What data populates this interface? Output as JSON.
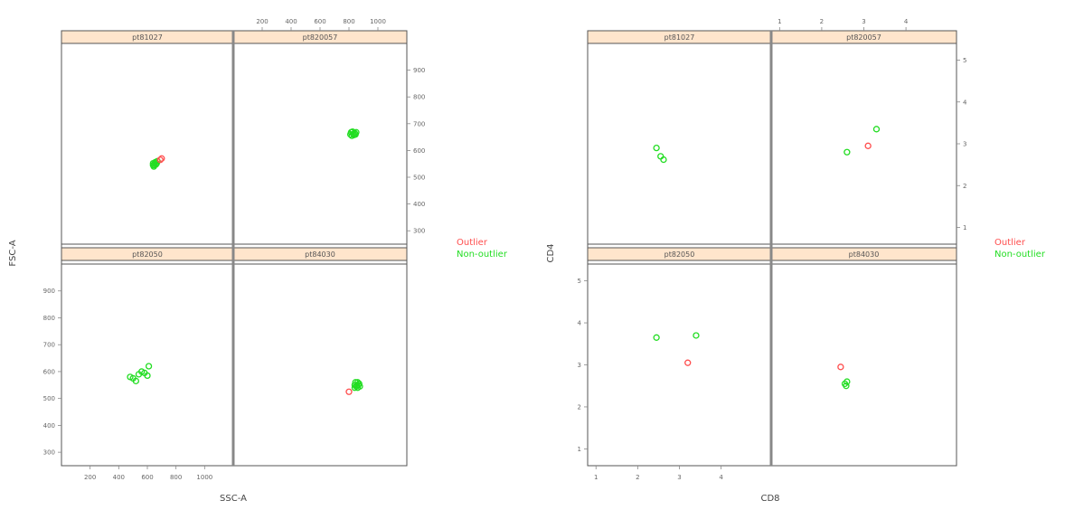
{
  "colors": {
    "outlier": "#ff4d4d",
    "non_outlier": "#22dd22",
    "strip_fill": "#ffe5cc",
    "panel_border": "#555555",
    "divider": "#888888",
    "tick_text": "#666666"
  },
  "legend": {
    "outlier_label": "Outlier",
    "non_outlier_label": "Non-outlier"
  },
  "chart_data": [
    {
      "type": "scatter",
      "xlabel": "SSC-A",
      "ylabel": "FSC-A",
      "xlim": [
        0,
        1200
      ],
      "ylim": [
        250,
        1000
      ],
      "x_ticks_top": [
        "200",
        "400",
        "600",
        "800",
        "1000"
      ],
      "x_ticks_bottom": [
        "200",
        "400",
        "600",
        "800",
        "1000"
      ],
      "y_ticks_right": [
        "300",
        "400",
        "500",
        "600",
        "700",
        "800",
        "900"
      ],
      "y_ticks_left": [
        "300",
        "400",
        "500",
        "600",
        "700",
        "800",
        "900"
      ],
      "panels": [
        {
          "name": "pt81027",
          "outlier": [
            [
              700,
              570
            ],
            [
              690,
              565
            ]
          ],
          "non_outlier": [
            [
              640,
              545
            ],
            [
              650,
              550
            ],
            [
              660,
              548
            ],
            [
              655,
              556
            ],
            [
              645,
              540
            ],
            [
              665,
              552
            ],
            [
              670,
              560
            ],
            [
              650,
              545
            ],
            [
              640,
              552
            ]
          ]
        },
        {
          "name": "pt820057",
          "outlier": [],
          "non_outlier": [
            [
              810,
              660
            ],
            [
              830,
              662
            ],
            [
              840,
              665
            ],
            [
              820,
              655
            ],
            [
              850,
              668
            ],
            [
              825,
              670
            ],
            [
              845,
              660
            ],
            [
              815,
              668
            ],
            [
              835,
              658
            ]
          ]
        },
        {
          "name": "pt82050",
          "outlier": [],
          "non_outlier": [
            [
              480,
              580
            ],
            [
              520,
              565
            ],
            [
              560,
              600
            ],
            [
              610,
              620
            ],
            [
              600,
              585
            ],
            [
              540,
              590
            ],
            [
              500,
              575
            ],
            [
              580,
              595
            ]
          ]
        },
        {
          "name": "pt84030",
          "outlier": [
            [
              800,
              525
            ]
          ],
          "non_outlier": [
            [
              840,
              550
            ],
            [
              860,
              560
            ],
            [
              870,
              555
            ],
            [
              850,
              545
            ],
            [
              860,
              540
            ],
            [
              845,
              560
            ],
            [
              865,
              550
            ],
            [
              855,
              548
            ],
            [
              875,
              545
            ],
            [
              840,
              540
            ]
          ]
        }
      ]
    },
    {
      "type": "scatter",
      "xlabel": "CD8",
      "ylabel": "CD4",
      "xlim": [
        0.8,
        5.2
      ],
      "ylim": [
        0.6,
        5.4
      ],
      "x_ticks_top": [
        "1",
        "2",
        "3",
        "4"
      ],
      "x_ticks_bottom": [
        "1",
        "2",
        "3",
        "4"
      ],
      "y_ticks_right": [
        "1",
        "2",
        "3",
        "4",
        "5"
      ],
      "y_ticks_left": [
        "1",
        "2",
        "3",
        "4",
        "5"
      ],
      "panels": [
        {
          "name": "pt81027",
          "outlier": [],
          "non_outlier": [
            [
              2.45,
              2.9
            ],
            [
              2.55,
              2.7
            ],
            [
              2.62,
              2.62
            ]
          ]
        },
        {
          "name": "pt820057",
          "outlier": [
            [
              3.1,
              2.95
            ]
          ],
          "non_outlier": [
            [
              2.6,
              2.8
            ],
            [
              3.3,
              3.35
            ]
          ]
        },
        {
          "name": "pt82050",
          "outlier": [
            [
              3.2,
              3.05
            ]
          ],
          "non_outlier": [
            [
              2.45,
              3.65
            ],
            [
              3.4,
              3.7
            ]
          ]
        },
        {
          "name": "pt84030",
          "outlier": [
            [
              2.45,
              2.95
            ]
          ],
          "non_outlier": [
            [
              2.55,
              2.55
            ],
            [
              2.6,
              2.6
            ],
            [
              2.58,
              2.5
            ]
          ]
        }
      ]
    }
  ]
}
